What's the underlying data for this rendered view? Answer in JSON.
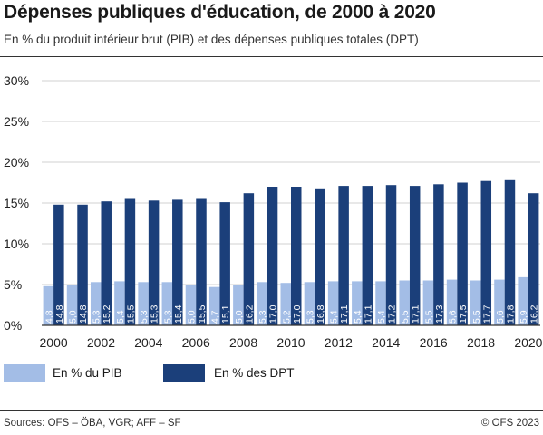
{
  "chart_data": {
    "type": "bar",
    "title": "Dépenses publiques d'éducation, de 2000 à 2020",
    "subtitle": "En % du produit intérieur brut (PIB) et des dépenses publiques totales (DPT)",
    "categories": [
      "2000",
      "2001",
      "2002",
      "2003",
      "2004",
      "2005",
      "2006",
      "2007",
      "2008",
      "2009",
      "2010",
      "2011",
      "2012",
      "2013",
      "2014",
      "2015",
      "2016",
      "2017",
      "2018",
      "2019",
      "2020"
    ],
    "x_tick_labels": [
      "2000",
      "2002",
      "2004",
      "2006",
      "2008",
      "2010",
      "2012",
      "2014",
      "2016",
      "2018",
      "2020"
    ],
    "y_tick_labels": [
      "0%",
      "5%",
      "10%",
      "15%",
      "20%",
      "25%",
      "30%"
    ],
    "ylim": [
      0,
      30
    ],
    "grid": true,
    "legend_position": "bottom",
    "series": [
      {
        "name": "En % du PIB",
        "color": "#a3bde6",
        "values": [
          4.8,
          5.0,
          5.3,
          5.4,
          5.3,
          5.3,
          5.0,
          4.7,
          5.0,
          5.3,
          5.2,
          5.3,
          5.4,
          5.4,
          5.4,
          5.5,
          5.5,
          5.6,
          5.5,
          5.6,
          5.9
        ],
        "labels": [
          "4,8",
          "5,0",
          "5,3",
          "5,4",
          "5,3",
          "5,3",
          "5,0",
          "4,7",
          "5,0",
          "5,3",
          "5,2",
          "5,3",
          "5,4",
          "5,4",
          "5,4",
          "5,5",
          "5,5",
          "5,6",
          "5,5",
          "5,6",
          "5,9"
        ]
      },
      {
        "name": "En % des DPT",
        "color": "#1b3f7a",
        "values": [
          14.8,
          14.8,
          15.2,
          15.5,
          15.3,
          15.4,
          15.5,
          15.1,
          16.2,
          17.0,
          17.0,
          16.8,
          17.1,
          17.1,
          17.2,
          17.1,
          17.3,
          17.5,
          17.7,
          17.8,
          16.2
        ],
        "labels": [
          "14,8",
          "14,8",
          "15,2",
          "15,5",
          "15,3",
          "15,4",
          "15,5",
          "15,1",
          "16,2",
          "17,0",
          "17,0",
          "16,8",
          "17,1",
          "17,1",
          "17,2",
          "17,1",
          "17,3",
          "17,5",
          "17,7",
          "17,8",
          "16,2"
        ]
      }
    ]
  },
  "footer": {
    "source": "Sources: OFS – ÖBA, VGR; AFF – SF",
    "copyright": "© OFS 2023"
  }
}
